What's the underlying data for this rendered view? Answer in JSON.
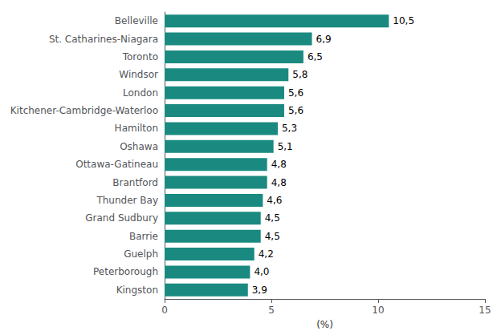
{
  "chart_data": {
    "type": "bar",
    "orientation": "horizontal",
    "categories": [
      "Kingston",
      "Peterborough",
      "Guelph",
      "Barrie",
      "Grand Sudbury",
      "Thunder Bay",
      "Brantford",
      "Ottawa-Gatineau",
      "Oshawa",
      "Hamilton",
      "Kitchener-Cambridge-Waterloo",
      "London",
      "Windsor",
      "Toronto",
      "St. Catharines-Niagara",
      "Belleville"
    ],
    "values": [
      3.9,
      4.0,
      4.2,
      4.5,
      4.5,
      4.6,
      4.8,
      4.8,
      5.1,
      5.3,
      5.6,
      5.6,
      5.8,
      6.5,
      6.9,
      10.5
    ],
    "value_labels": [
      "3,9",
      "4,0",
      "4,2",
      "4,5",
      "4,5",
      "4,6",
      "4,8",
      "4,8",
      "5,1",
      "5,3",
      "5,6",
      "5,6",
      "5,8",
      "6,5",
      "6,9",
      "10,5"
    ],
    "data_labels": true,
    "color": "#1a8a80",
    "xlabel": "(%)",
    "xlim": [
      0,
      15
    ],
    "xticks": [
      0,
      5,
      10,
      15
    ],
    "grid": false
  }
}
